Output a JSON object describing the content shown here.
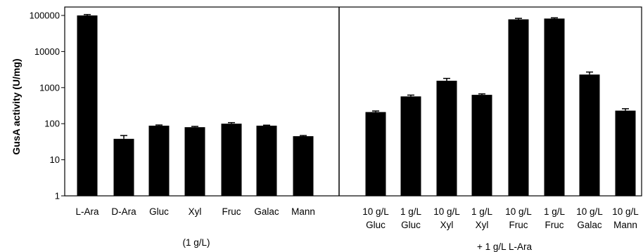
{
  "chart_data": {
    "type": "bar",
    "ylabel": "GusA activity (U/mg)",
    "yscale": "log",
    "ylim": [
      1,
      100000
    ],
    "yticks": [
      "1",
      "10",
      "100",
      "1000",
      "10000",
      "100000"
    ],
    "bar_color": "#000000",
    "grid": false,
    "legend": "none",
    "panels": [
      {
        "group_label": "(1 g/L)",
        "categories": [
          [
            "L-Ara"
          ],
          [
            "D-Ara"
          ],
          [
            "Gluc"
          ],
          [
            "Xyl"
          ],
          [
            "Fruc"
          ],
          [
            "Galac"
          ],
          [
            "Mann"
          ]
        ],
        "values": [
          100000,
          38,
          88,
          80,
          100,
          88,
          45
        ],
        "errors": [
          6000,
          9,
          4,
          4,
          7,
          3,
          2
        ]
      },
      {
        "group_label": "+ 1 g/L L-Ara",
        "categories": [
          [
            "10 g/L",
            "Gluc"
          ],
          [
            "1 g/L",
            "Gluc"
          ],
          [
            "10 g/L",
            "Xyl"
          ],
          [
            "1 g/L",
            "Xyl"
          ],
          [
            "10 g/L",
            "Fruc"
          ],
          [
            "1 g/L",
            "Fruc"
          ],
          [
            "10 g/L",
            "Galac"
          ],
          [
            "10 g/L",
            "Mann"
          ]
        ],
        "values": [
          210,
          570,
          1550,
          630,
          78000,
          82000,
          2300,
          230
        ],
        "errors": [
          15,
          50,
          250,
          40,
          5000,
          4000,
          400,
          30
        ]
      }
    ]
  }
}
